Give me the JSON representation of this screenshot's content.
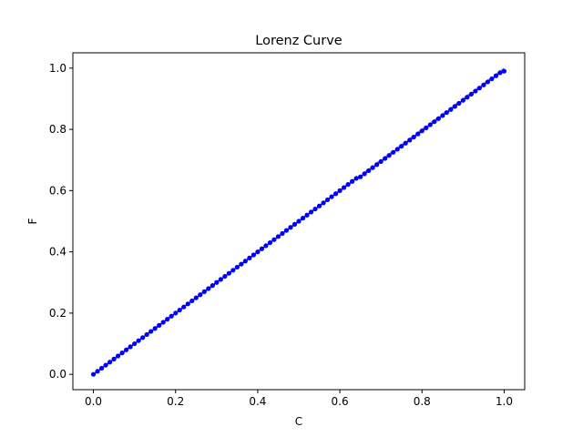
{
  "chart_data": {
    "type": "line",
    "title": "Lorenz Curve",
    "xlabel": "C",
    "ylabel": "F",
    "xlim": [
      -0.05,
      1.05
    ],
    "ylim": [
      -0.05,
      1.05
    ],
    "xticks": [
      "0.0",
      "0.2",
      "0.4",
      "0.6",
      "0.8",
      "1.0"
    ],
    "yticks": [
      "0.0",
      "0.2",
      "0.4",
      "0.6",
      "0.8",
      "1.0"
    ],
    "grid": false,
    "legend": "none",
    "reference_line": {
      "x": [
        0,
        1
      ],
      "y": [
        0,
        1
      ],
      "color": "#808080",
      "style": "dashed"
    },
    "series": [
      {
        "color": "#0000ff",
        "marker": "circle",
        "x": [
          0.0,
          0.01,
          0.02,
          0.03,
          0.04,
          0.05,
          0.06,
          0.07,
          0.08,
          0.09,
          0.1,
          0.11,
          0.12,
          0.13,
          0.14,
          0.15,
          0.16,
          0.17,
          0.18,
          0.19,
          0.2,
          0.21,
          0.22,
          0.23,
          0.24,
          0.25,
          0.26,
          0.27,
          0.28,
          0.29,
          0.3,
          0.31,
          0.32,
          0.33,
          0.34,
          0.35,
          0.36,
          0.37,
          0.38,
          0.39,
          0.4,
          0.41,
          0.42,
          0.43,
          0.44,
          0.45,
          0.46,
          0.47,
          0.48,
          0.49,
          0.5,
          0.51,
          0.52,
          0.53,
          0.54,
          0.55,
          0.56,
          0.57,
          0.58,
          0.59,
          0.6,
          0.61,
          0.62,
          0.63,
          0.64,
          0.65,
          0.66,
          0.67,
          0.68,
          0.69,
          0.7,
          0.71,
          0.72,
          0.73,
          0.74,
          0.75,
          0.76,
          0.77,
          0.78,
          0.79,
          0.8,
          0.81,
          0.82,
          0.83,
          0.84,
          0.85,
          0.86,
          0.87,
          0.88,
          0.89,
          0.9,
          0.91,
          0.92,
          0.93,
          0.94,
          0.95,
          0.96,
          0.97,
          0.98,
          0.99,
          1.0
        ],
        "y": [
          0.0,
          0.01,
          0.02,
          0.03,
          0.04,
          0.05,
          0.06,
          0.07,
          0.08,
          0.09,
          0.1,
          0.11,
          0.12,
          0.13,
          0.14,
          0.15,
          0.16,
          0.17,
          0.18,
          0.19,
          0.2,
          0.21,
          0.22,
          0.23,
          0.24,
          0.25,
          0.26,
          0.27,
          0.28,
          0.29,
          0.3,
          0.31,
          0.32,
          0.33,
          0.34,
          0.35,
          0.36,
          0.37,
          0.38,
          0.39,
          0.4,
          0.41,
          0.42,
          0.43,
          0.44,
          0.45,
          0.46,
          0.47,
          0.48,
          0.49,
          0.5,
          0.51,
          0.52,
          0.53,
          0.54,
          0.55,
          0.56,
          0.57,
          0.58,
          0.59,
          0.6,
          0.61,
          0.62,
          0.63,
          0.64,
          0.645,
          0.655,
          0.665,
          0.675,
          0.685,
          0.695,
          0.705,
          0.715,
          0.725,
          0.735,
          0.745,
          0.755,
          0.765,
          0.775,
          0.785,
          0.795,
          0.805,
          0.815,
          0.825,
          0.835,
          0.845,
          0.855,
          0.865,
          0.875,
          0.885,
          0.895,
          0.905,
          0.915,
          0.925,
          0.935,
          0.945,
          0.955,
          0.965,
          0.975,
          0.985,
          0.99
        ]
      }
    ]
  }
}
